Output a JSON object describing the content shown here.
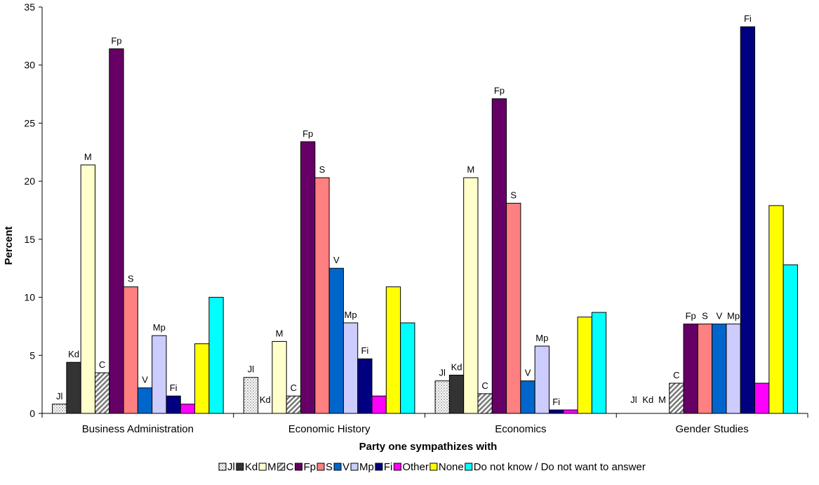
{
  "chart_data": {
    "type": "bar",
    "title": "",
    "xlabel": "Party one sympathizes with",
    "ylabel": "Percent",
    "ylim": [
      0,
      35
    ],
    "yticks": [
      0,
      5,
      10,
      15,
      20,
      25,
      30,
      35
    ],
    "grid": false,
    "legend_position": "bottom",
    "categories": [
      "Business Administration",
      "Economic History",
      "Economics",
      "Gender Studies"
    ],
    "series": [
      {
        "name": "Jl",
        "color": "#ffffff",
        "pattern": "dots",
        "values": [
          0.8,
          3.1,
          2.8,
          0
        ],
        "labels": [
          "Jl",
          "Jl",
          "Jl",
          "Jl"
        ]
      },
      {
        "name": "Kd",
        "color": "#333333",
        "values": [
          4.4,
          0,
          3.3,
          0
        ],
        "labels": [
          "Kd",
          "Kd",
          "Kd",
          "Kd"
        ]
      },
      {
        "name": "M",
        "color": "#ffffcc",
        "values": [
          21.4,
          6.2,
          20.3,
          0
        ],
        "labels": [
          "M",
          "M",
          "M",
          "M"
        ]
      },
      {
        "name": "C",
        "color": "#ffffff",
        "pattern": "diagonal",
        "values": [
          3.5,
          1.5,
          1.7,
          2.6
        ],
        "labels": [
          "C",
          "C",
          "C",
          "C"
        ]
      },
      {
        "name": "Fp",
        "color": "#660066",
        "values": [
          31.4,
          23.4,
          27.1,
          7.7
        ],
        "labels": [
          "Fp",
          "Fp",
          "Fp",
          "Fp"
        ]
      },
      {
        "name": "S",
        "color": "#ff8080",
        "values": [
          10.9,
          20.3,
          18.1,
          7.7
        ],
        "labels": [
          "S",
          "S",
          "S",
          "S"
        ]
      },
      {
        "name": "V",
        "color": "#0066cc",
        "values": [
          2.2,
          12.5,
          2.8,
          7.7
        ],
        "labels": [
          "V",
          "V",
          "V",
          "V"
        ]
      },
      {
        "name": "Mp",
        "color": "#ccccff",
        "values": [
          6.7,
          7.8,
          5.8,
          7.7
        ],
        "labels": [
          "Mp",
          "Mp",
          "Mp",
          "Mp"
        ]
      },
      {
        "name": "Fi",
        "color": "#000080",
        "values": [
          1.5,
          4.7,
          0.3,
          33.3
        ],
        "labels": [
          "Fi",
          "Fi",
          "Fi",
          "Fi"
        ]
      },
      {
        "name": "Other",
        "color": "#ff00ff",
        "values": [
          0.8,
          1.5,
          0.3,
          2.6
        ],
        "labels": [
          "",
          "",
          "",
          ""
        ]
      },
      {
        "name": "None",
        "color": "#ffff00",
        "values": [
          6.0,
          10.9,
          8.3,
          17.9
        ],
        "labels": [
          "",
          "",
          "",
          ""
        ]
      },
      {
        "name": "Do not know / Do not want to answer",
        "color": "#00ffff",
        "values": [
          10.0,
          7.8,
          8.7,
          12.8
        ],
        "labels": [
          "",
          "",
          "",
          ""
        ]
      }
    ]
  }
}
